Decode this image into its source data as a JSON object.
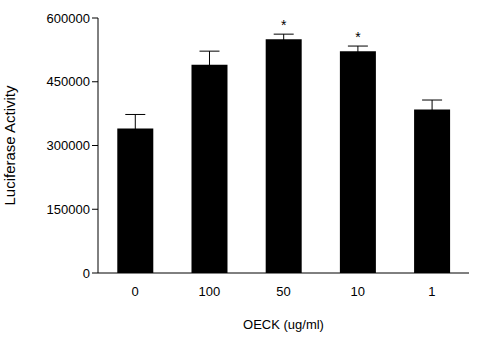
{
  "chart_data": {
    "type": "bar",
    "categories": [
      "0",
      "100",
      "50",
      "10",
      "1"
    ],
    "values": [
      340000,
      490000,
      550000,
      522000,
      385000
    ],
    "errors": [
      33000,
      32000,
      12000,
      12000,
      22000
    ],
    "annotations": [
      null,
      null,
      "*",
      "*",
      null
    ],
    "color": "#000000",
    "ylim": [
      0,
      600000
    ],
    "yticks": [
      0,
      150000,
      300000,
      450000,
      600000
    ],
    "x_label": "OECK (ug/ml)",
    "y_label": "Luciferase Activity",
    "grid": false
  }
}
